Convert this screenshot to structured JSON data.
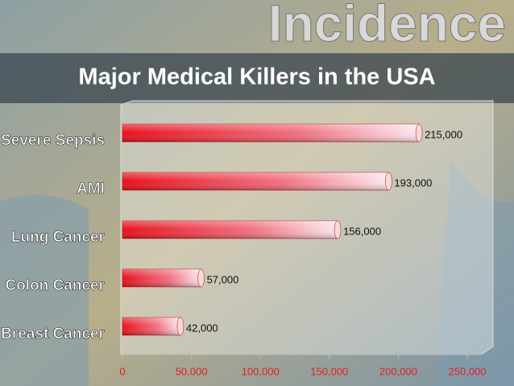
{
  "heading": "Incidence",
  "chart_data": {
    "type": "bar",
    "orientation": "horizontal",
    "title": "Major Medical Killers in the USA",
    "categories": [
      "Severe Sepsis",
      "AMI",
      "Lung Cancer",
      "Colon Cancer",
      "Breast Cancer"
    ],
    "values": [
      215000,
      193000,
      156000,
      57000,
      42000
    ],
    "value_labels": [
      "215,000",
      "193,000",
      "156,000",
      "57,000",
      "42,000"
    ],
    "color": "#e8101c",
    "xlim": [
      0,
      250000
    ],
    "xticks": [
      0,
      {
        "value": 50000,
        "label": "50,000"
      },
      {
        "value": 100000,
        "label": "100,000"
      },
      {
        "value": 150000,
        "label": "150,000"
      },
      {
        "value": 200000,
        "label": "200,000"
      },
      {
        "value": 250000,
        "label": "250,000"
      }
    ],
    "grid": false
  }
}
